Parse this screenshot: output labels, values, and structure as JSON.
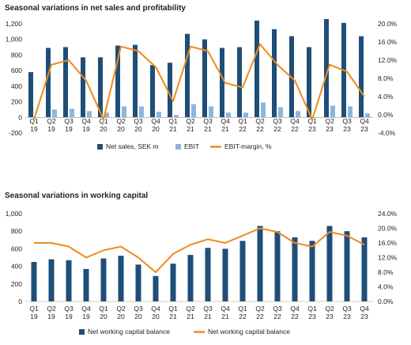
{
  "chart_data": [
    {
      "type": "bar",
      "title": "Seasonal variations in net sales and profitability",
      "categories": [
        [
          "Q1",
          "19"
        ],
        [
          "Q2",
          "19"
        ],
        [
          "Q3",
          "19"
        ],
        [
          "Q4",
          "19"
        ],
        [
          "Q1",
          "20"
        ],
        [
          "Q2",
          "20"
        ],
        [
          "Q3",
          "20"
        ],
        [
          "Q4",
          "20"
        ],
        [
          "Q1",
          "21"
        ],
        [
          "Q2",
          "21"
        ],
        [
          "Q3",
          "21"
        ],
        [
          "Q4",
          "21"
        ],
        [
          "Q1",
          "22"
        ],
        [
          "Q2",
          "22"
        ],
        [
          "Q3",
          "22"
        ],
        [
          "Q4",
          "22"
        ],
        [
          "Q1",
          "23"
        ],
        [
          "Q2",
          "23"
        ],
        [
          "Q3",
          "23"
        ],
        [
          "Q4",
          "23"
        ]
      ],
      "series": [
        {
          "name": "Net sales, SEK m",
          "kind": "bar",
          "axis": "left",
          "color": "#1f4e79",
          "values": [
            580,
            890,
            900,
            770,
            770,
            920,
            930,
            670,
            700,
            1070,
            1000,
            890,
            900,
            1240,
            1130,
            1040,
            900,
            1260,
            1210,
            1040
          ]
        },
        {
          "name": "EBIT",
          "kind": "bar",
          "axis": "left",
          "color": "#8db4e2",
          "values": [
            0,
            100,
            110,
            80,
            60,
            140,
            140,
            70,
            30,
            170,
            140,
            60,
            60,
            190,
            130,
            80,
            0,
            150,
            140,
            50
          ]
        },
        {
          "name": "EBIT-margin, %",
          "kind": "line",
          "axis": "right",
          "color": "#f08a1d",
          "values": [
            -1.0,
            11.0,
            12.0,
            7.5,
            -1.0,
            15.0,
            14.0,
            10.5,
            3.0,
            15.0,
            14.0,
            7.0,
            6.0,
            15.5,
            11.0,
            7.5,
            -1.0,
            11.0,
            9.5,
            4.0
          ]
        }
      ],
      "y_left": {
        "min": -200,
        "max": 1200,
        "ticks": [
          "-200",
          "0",
          "200",
          "400",
          "600",
          "800",
          "1,000",
          "1,200"
        ]
      },
      "y_right": {
        "min": -4,
        "max": 20,
        "ticks": [
          "-4.0%",
          "0.0%",
          "4.0%",
          "8.0%",
          "12.0%",
          "16.0%",
          "20.0%"
        ]
      },
      "legend": {
        "placement": "bottom",
        "items": [
          "Net sales, SEK m",
          "EBIT",
          "EBIT-margin, %"
        ]
      },
      "grid": false
    },
    {
      "type": "bar",
      "title": "Seasonal variations in working capital",
      "categories": [
        [
          "Q1",
          "19"
        ],
        [
          "Q2",
          "19"
        ],
        [
          "Q3",
          "19"
        ],
        [
          "Q4",
          "19"
        ],
        [
          "Q1",
          "20"
        ],
        [
          "Q2",
          "20"
        ],
        [
          "Q3",
          "20"
        ],
        [
          "Q4",
          "20"
        ],
        [
          "Q1",
          "21"
        ],
        [
          "Q2",
          "21"
        ],
        [
          "Q3",
          "21"
        ],
        [
          "Q4",
          "21"
        ],
        [
          "Q1",
          "22"
        ],
        [
          "Q2",
          "22"
        ],
        [
          "Q3",
          "22"
        ],
        [
          "Q4",
          "22"
        ],
        [
          "Q1",
          "23"
        ],
        [
          "Q2",
          "23"
        ],
        [
          "Q3",
          "23"
        ],
        [
          "Q4",
          "23"
        ]
      ],
      "series": [
        {
          "name": "Net working capital balance",
          "kind": "bar",
          "axis": "left",
          "color": "#1f4e79",
          "values": [
            450,
            480,
            470,
            370,
            490,
            520,
            420,
            290,
            430,
            530,
            610,
            600,
            690,
            860,
            800,
            730,
            690,
            860,
            800,
            730
          ]
        },
        {
          "name": "Net working capital balance",
          "kind": "line",
          "axis": "right",
          "color": "#f08a1d",
          "values": [
            16.0,
            16.0,
            15.0,
            12.0,
            14.0,
            15.0,
            12.0,
            8.0,
            13.0,
            15.5,
            17.0,
            16.0,
            18.0,
            20.0,
            19.0,
            16.0,
            15.0,
            19.0,
            18.0,
            15.5
          ]
        }
      ],
      "y_left": {
        "min": 0,
        "max": 1000,
        "ticks": [
          "0",
          "200",
          "400",
          "600",
          "800",
          "1,000"
        ]
      },
      "y_right": {
        "min": 0,
        "max": 24,
        "ticks": [
          "0.0%",
          "4.0%",
          "8.0%",
          "12.0%",
          "16.0%",
          "20.0%",
          "24.0%"
        ]
      },
      "legend": {
        "placement": "bottom",
        "items": [
          "Net working capital balance",
          "Net working capital balance"
        ]
      },
      "grid": false
    }
  ]
}
